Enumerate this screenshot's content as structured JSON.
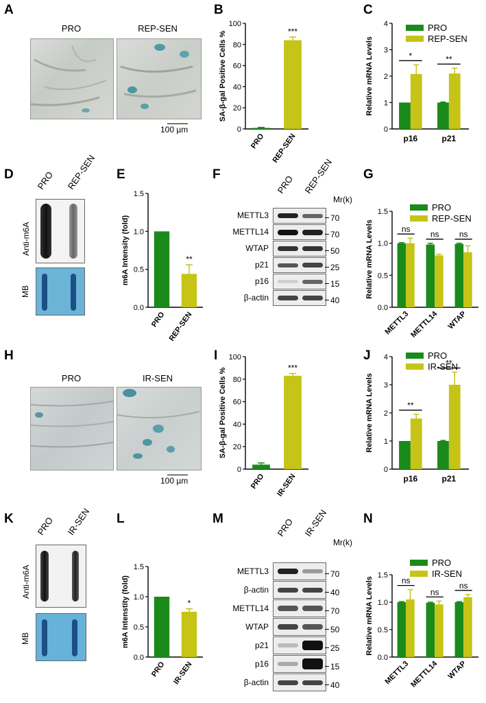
{
  "panels": {
    "A": {
      "letter": "A",
      "left": "PRO",
      "right": "REP-SEN",
      "scale": "100 µm"
    },
    "B": {
      "letter": "B"
    },
    "C": {
      "letter": "C"
    },
    "D": {
      "letter": "D",
      "lane1": "PRO",
      "lane2": "REP-SEN",
      "top_label": "Anti-m6A",
      "bottom_label": "MB"
    },
    "E": {
      "letter": "E"
    },
    "F": {
      "letter": "F",
      "lane1": "PRO",
      "lane2": "REP-SEN",
      "mr": "Mr(k)",
      "rows": [
        {
          "name": "METTL3",
          "mw": "70"
        },
        {
          "name": "METTL14",
          "mw": "70"
        },
        {
          "name": "WTAP",
          "mw": "50"
        },
        {
          "name": "p21",
          "mw": "25"
        },
        {
          "name": "p16",
          "mw": "15"
        },
        {
          "name": "β-actin",
          "mw": "40"
        }
      ]
    },
    "G": {
      "letter": "G"
    },
    "H": {
      "letter": "H",
      "left": "PRO",
      "right": "IR-SEN",
      "scale": "100 µm"
    },
    "I": {
      "letter": "I"
    },
    "J": {
      "letter": "J"
    },
    "K": {
      "letter": "K",
      "lane1": "PRO",
      "lane2": "IR-SEN",
      "top_label": "Anti-m6A",
      "bottom_label": "MB"
    },
    "L": {
      "letter": "L"
    },
    "M": {
      "letter": "M",
      "lane1": "PRO",
      "lane2": "IR-SEN",
      "mr": "Mr(k)",
      "rows": [
        {
          "name": "METTL3",
          "mw": "70"
        },
        {
          "name": "β-actin",
          "mw": "40"
        },
        {
          "name": "METTL14",
          "mw": "70"
        },
        {
          "name": "WTAP",
          "mw": "50"
        },
        {
          "name": "p21",
          "mw": "25"
        },
        {
          "name": "p16",
          "mw": "15"
        },
        {
          "name": "β-actin",
          "mw": "40"
        }
      ]
    },
    "N": {
      "letter": "N"
    }
  },
  "colors": {
    "pro": "#1a8a1a",
    "sen": "#c5c417",
    "err": "#c5c417"
  },
  "chart_data": [
    {
      "id": "B",
      "type": "bar",
      "categories": [
        "PRO",
        "REP-SEN"
      ],
      "values": [
        1,
        84
      ],
      "errors": [
        0.5,
        3
      ],
      "ylabel": "SA-β-gal  Positive Cells %",
      "ylim": [
        0,
        100
      ],
      "yticks": [
        0,
        20,
        40,
        60,
        80,
        100
      ],
      "annotations": [
        {
          "index": 1,
          "text": "***"
        }
      ]
    },
    {
      "id": "C",
      "type": "bar",
      "categories": [
        "p16",
        "p21"
      ],
      "series": [
        {
          "name": "PRO",
          "values": [
            1,
            1
          ],
          "errors": [
            0,
            0.02
          ]
        },
        {
          "name": "REP-SEN",
          "values": [
            2.08,
            2.1
          ],
          "errors": [
            0.35,
            0.2
          ]
        }
      ],
      "ylabel": "Relative mRNA Levels",
      "ylim": [
        0,
        4
      ],
      "yticks": [
        0,
        1,
        2,
        3,
        4
      ],
      "annotations": [
        "*",
        "**"
      ]
    },
    {
      "id": "E",
      "type": "bar",
      "categories": [
        "PRO",
        "REP-SEN"
      ],
      "values": [
        1.0,
        0.44
      ],
      "errors": [
        0,
        0.12
      ],
      "ylabel": "m6A Intensity (fold)",
      "ylim": [
        0,
        1.5
      ],
      "yticks": [
        "0.0",
        "0.5",
        "1.0",
        "1.5"
      ],
      "annotations": [
        {
          "index": 1,
          "text": "**"
        }
      ]
    },
    {
      "id": "G",
      "type": "bar",
      "categories": [
        "METTL3",
        "METTL14",
        "WTAP"
      ],
      "series": [
        {
          "name": "PRO",
          "values": [
            1.0,
            0.98,
            0.99
          ],
          "errors": [
            0.01,
            0.02,
            0.01
          ]
        },
        {
          "name": "REP-SEN",
          "values": [
            1.0,
            0.81,
            0.86
          ],
          "errors": [
            0.08,
            0.02,
            0.1
          ]
        }
      ],
      "ylabel": "Relative mRNA Levels",
      "ylim": [
        0,
        1.5
      ],
      "yticks": [
        "0.0",
        "0.5",
        "1.0",
        "1.5"
      ],
      "annotations": [
        "ns",
        "ns",
        "ns"
      ]
    },
    {
      "id": "I",
      "type": "bar",
      "categories": [
        "PRO",
        "IR-SEN"
      ],
      "values": [
        4,
        83
      ],
      "errors": [
        1.5,
        2
      ],
      "ylabel": "SA-β-gal  Positive Cells %",
      "ylim": [
        0,
        100
      ],
      "yticks": [
        0,
        20,
        40,
        60,
        80,
        100
      ],
      "annotations": [
        {
          "index": 1,
          "text": "***"
        }
      ]
    },
    {
      "id": "J",
      "type": "bar",
      "categories": [
        "p16",
        "p21"
      ],
      "series": [
        {
          "name": "PRO",
          "values": [
            1,
            1
          ],
          "errors": [
            0,
            0.02
          ]
        },
        {
          "name": "IR-SEN",
          "values": [
            1.8,
            3.0
          ],
          "errors": [
            0.15,
            0.45
          ]
        }
      ],
      "ylabel": "Relative mRNA Levels",
      "ylim": [
        0,
        4
      ],
      "yticks": [
        0,
        1,
        2,
        3,
        4
      ],
      "annotations": [
        "**",
        "**"
      ]
    },
    {
      "id": "L",
      "type": "bar",
      "categories": [
        "PRO",
        "IR-SEN"
      ],
      "values": [
        1.0,
        0.75
      ],
      "errors": [
        0,
        0.05
      ],
      "ylabel": "m6A Intenstity (fold)",
      "ylim": [
        0,
        1.5
      ],
      "yticks": [
        "0.0",
        "0.5",
        "1.0",
        "1.5"
      ],
      "annotations": [
        {
          "index": 1,
          "text": "*"
        }
      ]
    },
    {
      "id": "N",
      "type": "bar",
      "categories": [
        "METTL3",
        "METTL14",
        "WTAP"
      ],
      "series": [
        {
          "name": "PRO",
          "values": [
            1.0,
            0.99,
            1.0
          ],
          "errors": [
            0.01,
            0.01,
            0.01
          ]
        },
        {
          "name": "IR-SEN",
          "values": [
            1.05,
            0.96,
            1.09
          ],
          "errors": [
            0.18,
            0.06,
            0.05
          ]
        }
      ],
      "ylabel": "Relative mRNA Levels",
      "ylim": [
        0,
        1.5
      ],
      "yticks": [
        "0.0",
        "0.5",
        "1.0",
        "1.5"
      ],
      "annotations": [
        "ns",
        "ns",
        "ns"
      ]
    }
  ]
}
